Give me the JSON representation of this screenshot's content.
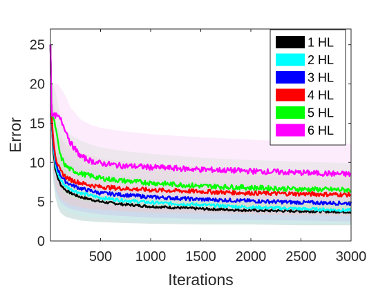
{
  "chart_data": {
    "type": "line",
    "title": "",
    "xlabel": "Iterations",
    "ylabel": "Error",
    "xlim": [
      0,
      3000
    ],
    "ylim": [
      0,
      27
    ],
    "xticks": [
      500,
      1000,
      1500,
      2000,
      2500,
      3000
    ],
    "xtick_labels": [
      "500",
      "1000",
      "1500",
      "2000",
      "2500",
      "3000"
    ],
    "yticks": [
      0,
      5,
      10,
      15,
      20,
      25
    ],
    "ytick_labels": [
      "0",
      "5",
      "10",
      "15",
      "20",
      "25"
    ],
    "grid": false,
    "legend_position": "top-right",
    "x": [
      0,
      10,
      25,
      50,
      75,
      100,
      150,
      200,
      300,
      400,
      500,
      700,
      1000,
      1500,
      2000,
      2500,
      3000
    ],
    "series": [
      {
        "name": "1 HL",
        "color": "#000000",
        "band_color": "#a8c8c8",
        "values": [
          25,
          16,
          12,
          9,
          8,
          7.2,
          6.5,
          6.1,
          5.6,
          5.3,
          5.0,
          4.7,
          4.4,
          4.1,
          3.9,
          3.8,
          3.7
        ],
        "lower": [
          25,
          12,
          8,
          5.5,
          4.3,
          3.6,
          3.1,
          2.9,
          2.6,
          2.5,
          2.4,
          2.3,
          2.2,
          2.1,
          2.1,
          2.0,
          2.0
        ],
        "upper": [
          25,
          20,
          17,
          14,
          12.5,
          11.5,
          10.5,
          9.8,
          9.0,
          8.6,
          8.2,
          7.8,
          7.4,
          7.0,
          6.7,
          6.5,
          6.3
        ]
      },
      {
        "name": "2 HL",
        "color": "#00ffff",
        "band_color": "#c8eeee",
        "values": [
          25,
          16,
          12.5,
          9.6,
          8.5,
          7.8,
          7.0,
          6.6,
          6.1,
          5.8,
          5.5,
          5.2,
          4.9,
          4.6,
          4.3,
          4.1,
          3.9
        ],
        "lower": [
          25,
          12,
          8.5,
          6,
          5,
          4.3,
          3.8,
          3.5,
          3.2,
          3.0,
          2.9,
          2.7,
          2.5,
          2.4,
          2.3,
          2.2,
          2.2
        ],
        "upper": [
          25,
          20,
          17.5,
          14,
          13,
          12,
          11,
          10.5,
          9.7,
          9.2,
          8.8,
          8.4,
          8.0,
          7.5,
          7.1,
          6.8,
          6.6
        ]
      },
      {
        "name": "3 HL",
        "color": "#0000ff",
        "band_color": "#c8c8f0",
        "values": [
          25,
          16,
          13,
          10.2,
          9.1,
          8.4,
          7.6,
          7.2,
          6.7,
          6.4,
          6.1,
          5.9,
          5.6,
          5.3,
          5.1,
          4.9,
          4.8
        ],
        "lower": [
          25,
          12,
          9,
          6.5,
          5.5,
          5.0,
          4.4,
          4.1,
          3.8,
          3.6,
          3.4,
          3.2,
          3.0,
          2.8,
          2.7,
          2.6,
          2.5
        ],
        "upper": [
          25,
          20,
          18,
          15,
          14,
          13,
          12,
          11.5,
          10.8,
          10.3,
          9.9,
          9.5,
          9.1,
          8.6,
          8.3,
          8.0,
          7.8
        ]
      },
      {
        "name": "4 HL",
        "color": "#ff0000",
        "band_color": "#f0c8c8",
        "values": [
          25,
          16,
          13.5,
          10.8,
          9.6,
          8.9,
          8.2,
          7.8,
          7.4,
          7.1,
          6.9,
          6.7,
          6.5,
          6.3,
          6.1,
          6.0,
          5.9
        ],
        "lower": [
          25,
          12,
          9.5,
          7,
          6,
          5.4,
          4.9,
          4.6,
          4.3,
          4.1,
          4.0,
          3.8,
          3.6,
          3.5,
          3.4,
          3.3,
          3.2
        ],
        "upper": [
          25,
          20,
          18.5,
          15.5,
          14.5,
          13.5,
          12.5,
          12,
          11.3,
          10.9,
          10.5,
          10.2,
          9.8,
          9.4,
          9.1,
          8.9,
          8.7
        ]
      },
      {
        "name": "5 HL",
        "color": "#00ff00",
        "band_color": "#c8f0c8",
        "values": [
          25,
          16,
          15.8,
          14.5,
          12.5,
          10.8,
          9.6,
          9.1,
          8.6,
          8.3,
          8.0,
          7.7,
          7.4,
          7.0,
          6.8,
          6.6,
          6.5
        ],
        "lower": [
          25,
          12,
          12,
          10.5,
          8.5,
          7,
          6,
          5.6,
          5.2,
          5.0,
          4.8,
          4.6,
          4.4,
          4.2,
          4.0,
          3.9,
          3.8
        ],
        "upper": [
          25,
          20,
          20,
          19,
          17.5,
          15.5,
          14,
          13.5,
          12.8,
          12.3,
          11.9,
          11.5,
          11.1,
          10.6,
          10.3,
          10.1,
          9.9
        ]
      },
      {
        "name": "6 HL",
        "color": "#ff00ff",
        "band_color": "#f8d4f8",
        "values": [
          25,
          16,
          15.9,
          16,
          15.8,
          15.5,
          14.2,
          12.5,
          10.8,
          10.2,
          9.9,
          9.6,
          9.4,
          9.1,
          8.9,
          8.7,
          8.5
        ],
        "lower": [
          25,
          12,
          11.5,
          11.5,
          11,
          10.5,
          9.2,
          7.8,
          6.6,
          6.1,
          5.8,
          5.6,
          5.4,
          5.2,
          5.1,
          5.0,
          4.9
        ],
        "upper": [
          25,
          20,
          20,
          20,
          20,
          19.5,
          18.5,
          17,
          15.5,
          14.8,
          14.4,
          14.0,
          13.6,
          13.2,
          12.9,
          12.6,
          12.4
        ]
      }
    ]
  }
}
